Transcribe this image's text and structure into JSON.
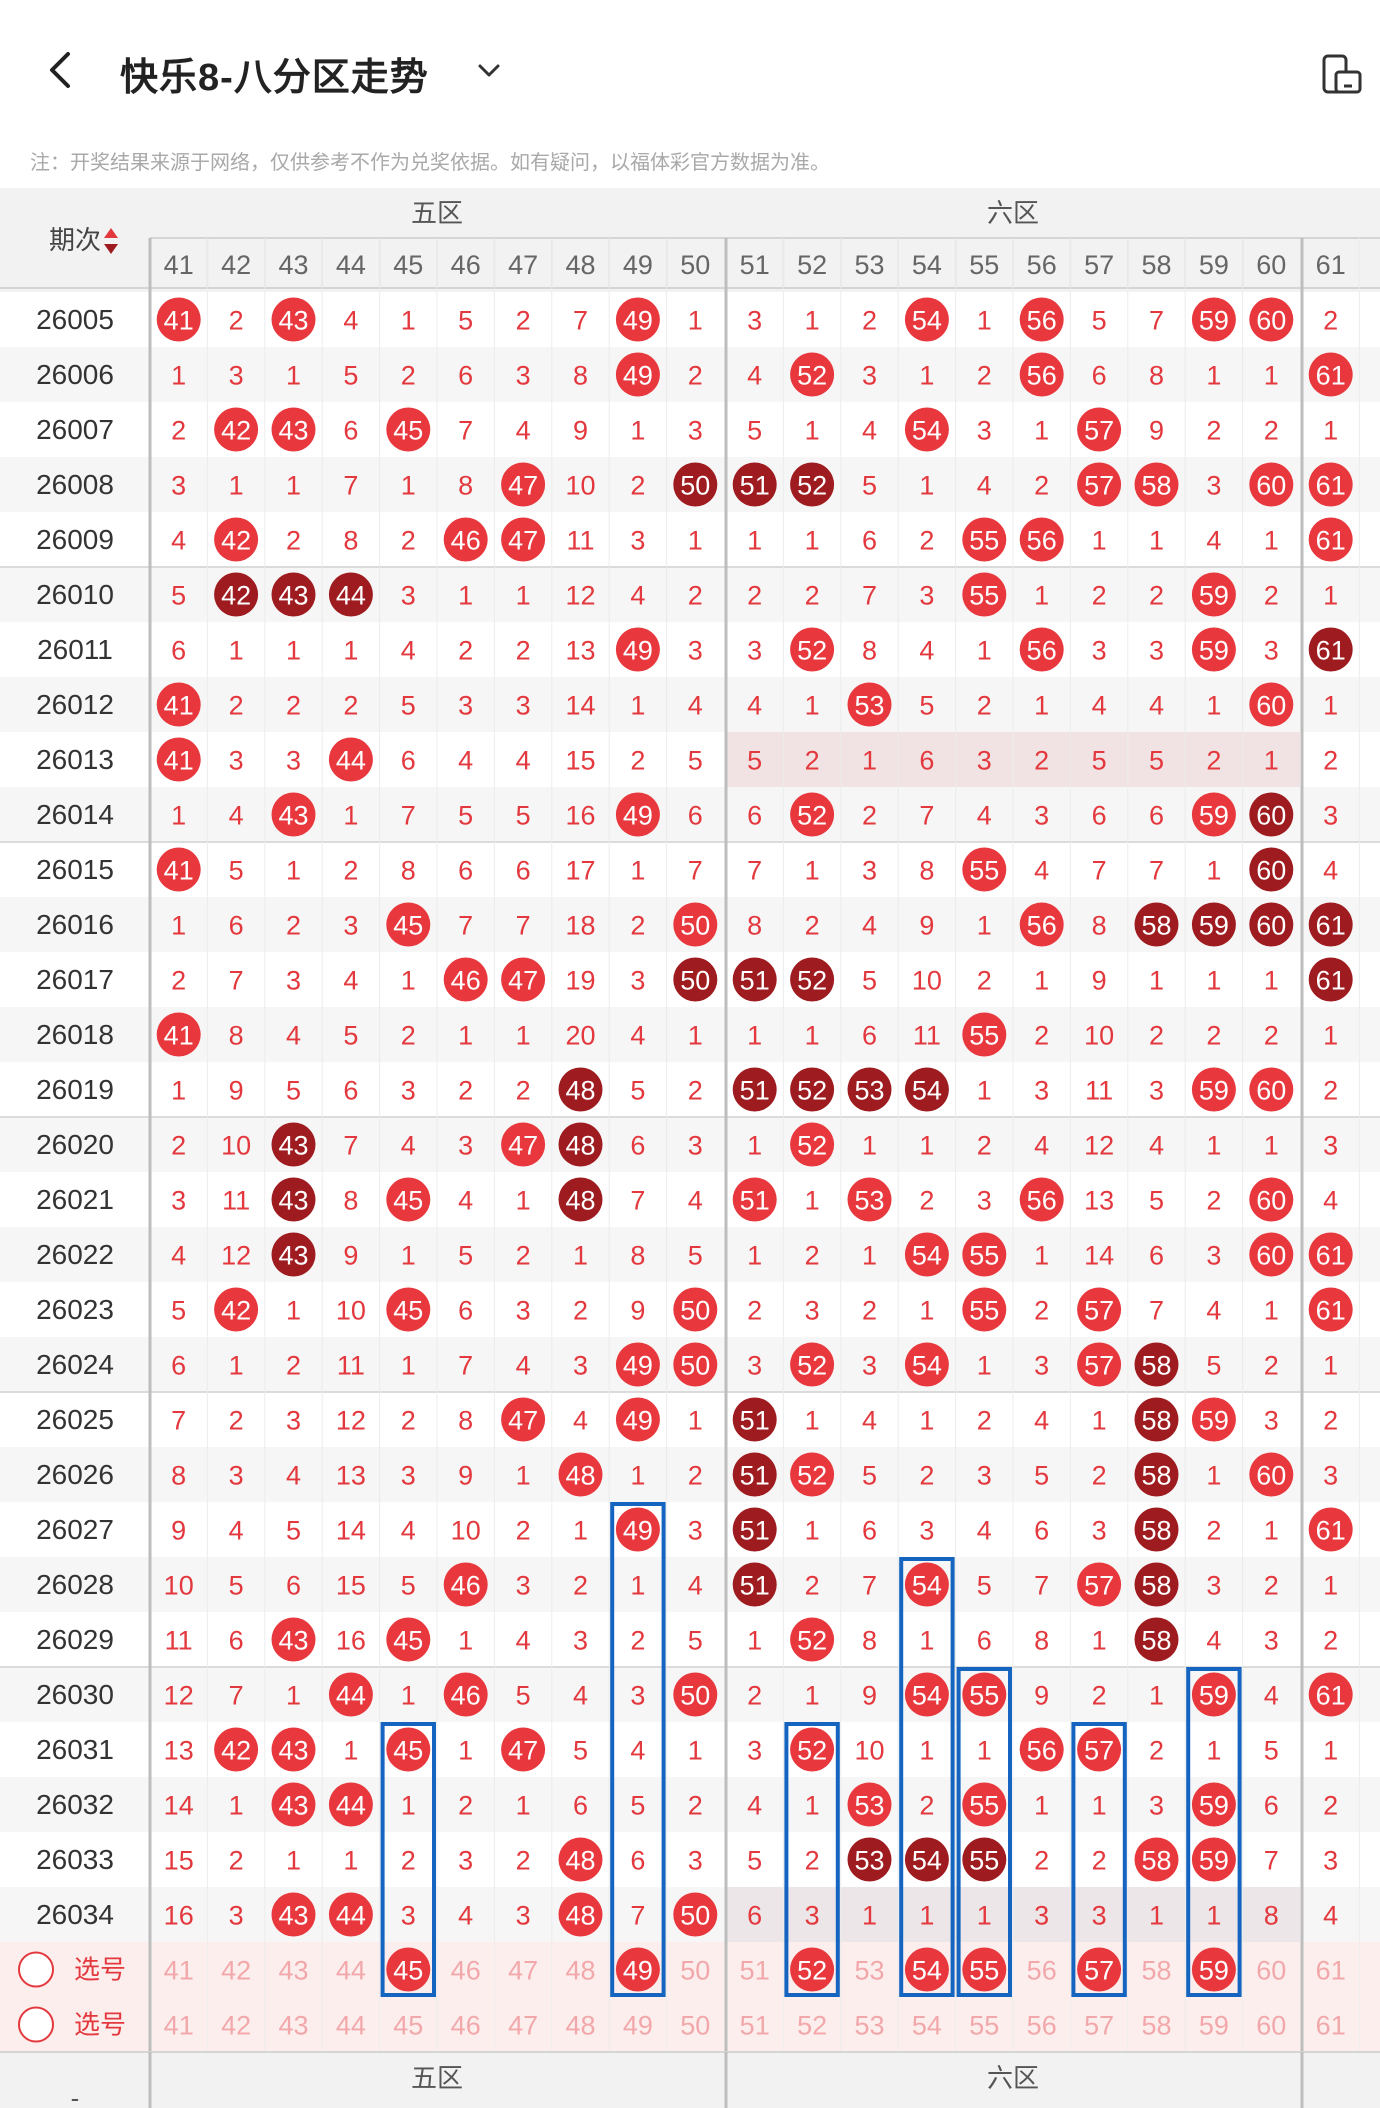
{
  "header": {
    "title": "快乐8-八分区走势",
    "notice": "注：开奖结果来源于网络，仅供参考不作为兑奖依据。如有疑问，以福体彩官方数据为准。"
  },
  "table": {
    "period_header": "期次",
    "zones": [
      {
        "label": "五区",
        "numbers": [
          "41",
          "42",
          "43",
          "44",
          "45",
          "46",
          "47",
          "48",
          "49",
          "50"
        ]
      },
      {
        "label": "六区",
        "numbers": [
          "51",
          "52",
          "53",
          "54",
          "55",
          "56",
          "57",
          "58",
          "59",
          "60"
        ]
      }
    ],
    "partial_column": "61",
    "select_label": "选号",
    "footer_dash": "-",
    "rows": [
      {
        "issue": "26005",
        "c": [
          41,
          2,
          43,
          4,
          1,
          5,
          2,
          7,
          49,
          1,
          3,
          1,
          2,
          54,
          1,
          56,
          5,
          7,
          59,
          60,
          2
        ]
      },
      {
        "issue": "26006",
        "c": [
          1,
          3,
          1,
          5,
          2,
          6,
          3,
          8,
          49,
          2,
          4,
          52,
          3,
          1,
          2,
          56,
          6,
          8,
          1,
          1,
          61
        ]
      },
      {
        "issue": "26007",
        "c": [
          2,
          42,
          43,
          6,
          45,
          7,
          4,
          9,
          1,
          3,
          5,
          1,
          4,
          54,
          3,
          1,
          57,
          9,
          2,
          2,
          1
        ]
      },
      {
        "issue": "26008",
        "c": [
          3,
          1,
          1,
          7,
          1,
          8,
          47,
          10,
          2,
          50,
          51,
          52,
          5,
          1,
          4,
          2,
          57,
          58,
          3,
          60,
          61
        ]
      },
      {
        "issue": "26009",
        "c": [
          4,
          42,
          2,
          8,
          2,
          46,
          47,
          11,
          3,
          1,
          1,
          1,
          6,
          2,
          55,
          56,
          1,
          1,
          4,
          1,
          61
        ]
      },
      {
        "issue": "26010",
        "c": [
          5,
          42,
          43,
          44,
          3,
          1,
          1,
          12,
          4,
          2,
          2,
          2,
          7,
          3,
          55,
          1,
          2,
          2,
          59,
          2,
          1
        ]
      },
      {
        "issue": "26011",
        "c": [
          6,
          1,
          1,
          1,
          4,
          2,
          2,
          13,
          49,
          3,
          3,
          52,
          8,
          4,
          1,
          56,
          3,
          3,
          59,
          3,
          61
        ]
      },
      {
        "issue": "26012",
        "c": [
          41,
          2,
          2,
          2,
          5,
          3,
          3,
          14,
          1,
          4,
          4,
          1,
          53,
          5,
          2,
          1,
          4,
          4,
          1,
          60,
          1
        ]
      },
      {
        "issue": "26013",
        "c": [
          41,
          3,
          3,
          44,
          6,
          4,
          4,
          15,
          2,
          5,
          5,
          2,
          1,
          6,
          3,
          2,
          5,
          5,
          2,
          1,
          2
        ]
      },
      {
        "issue": "26014",
        "c": [
          1,
          4,
          43,
          1,
          7,
          5,
          5,
          16,
          49,
          6,
          6,
          52,
          2,
          7,
          4,
          3,
          6,
          6,
          59,
          60,
          3
        ]
      },
      {
        "issue": "26015",
        "c": [
          41,
          5,
          1,
          2,
          8,
          6,
          6,
          17,
          1,
          7,
          7,
          1,
          3,
          8,
          55,
          4,
          7,
          7,
          1,
          60,
          4
        ]
      },
      {
        "issue": "26016",
        "c": [
          1,
          6,
          2,
          3,
          45,
          7,
          7,
          18,
          2,
          50,
          8,
          2,
          4,
          9,
          1,
          56,
          8,
          58,
          59,
          60,
          61
        ]
      },
      {
        "issue": "26017",
        "c": [
          2,
          7,
          3,
          4,
          1,
          46,
          47,
          19,
          3,
          50,
          51,
          52,
          5,
          10,
          2,
          1,
          9,
          1,
          1,
          1,
          61
        ]
      },
      {
        "issue": "26018",
        "c": [
          41,
          8,
          4,
          5,
          2,
          1,
          1,
          20,
          4,
          1,
          1,
          1,
          6,
          11,
          55,
          2,
          10,
          2,
          2,
          2,
          1
        ]
      },
      {
        "issue": "26019",
        "c": [
          1,
          9,
          5,
          6,
          3,
          2,
          2,
          48,
          5,
          2,
          51,
          52,
          53,
          54,
          1,
          3,
          11,
          3,
          59,
          60,
          2
        ]
      },
      {
        "issue": "26020",
        "c": [
          2,
          10,
          43,
          7,
          4,
          3,
          47,
          48,
          6,
          3,
          1,
          52,
          1,
          1,
          2,
          4,
          12,
          4,
          1,
          1,
          3
        ]
      },
      {
        "issue": "26021",
        "c": [
          3,
          11,
          43,
          8,
          45,
          4,
          1,
          48,
          7,
          4,
          51,
          1,
          53,
          2,
          3,
          56,
          13,
          5,
          2,
          60,
          4
        ]
      },
      {
        "issue": "26022",
        "c": [
          4,
          12,
          43,
          9,
          1,
          5,
          2,
          1,
          8,
          5,
          1,
          2,
          1,
          54,
          55,
          1,
          14,
          6,
          3,
          60,
          61
        ]
      },
      {
        "issue": "26023",
        "c": [
          5,
          42,
          1,
          10,
          45,
          6,
          3,
          2,
          9,
          50,
          2,
          3,
          2,
          1,
          55,
          2,
          57,
          7,
          4,
          1,
          61
        ]
      },
      {
        "issue": "26024",
        "c": [
          6,
          1,
          2,
          11,
          1,
          7,
          4,
          3,
          49,
          50,
          3,
          52,
          3,
          54,
          1,
          3,
          57,
          58,
          5,
          2,
          1
        ]
      },
      {
        "issue": "26025",
        "c": [
          7,
          2,
          3,
          12,
          2,
          8,
          47,
          4,
          49,
          1,
          51,
          1,
          4,
          1,
          2,
          4,
          1,
          58,
          59,
          3,
          2
        ]
      },
      {
        "issue": "26026",
        "c": [
          8,
          3,
          4,
          13,
          3,
          9,
          1,
          48,
          1,
          2,
          51,
          52,
          5,
          2,
          3,
          5,
          2,
          58,
          1,
          60,
          3
        ]
      },
      {
        "issue": "26027",
        "c": [
          9,
          4,
          5,
          14,
          4,
          10,
          2,
          1,
          49,
          3,
          51,
          1,
          6,
          3,
          4,
          6,
          3,
          58,
          2,
          1,
          61
        ]
      },
      {
        "issue": "26028",
        "c": [
          10,
          5,
          6,
          15,
          5,
          46,
          3,
          2,
          1,
          4,
          51,
          2,
          7,
          54,
          5,
          7,
          57,
          58,
          3,
          2,
          1
        ]
      },
      {
        "issue": "26029",
        "c": [
          11,
          6,
          43,
          16,
          45,
          1,
          4,
          3,
          2,
          5,
          1,
          52,
          8,
          1,
          6,
          8,
          1,
          58,
          4,
          3,
          2
        ]
      },
      {
        "issue": "26030",
        "c": [
          12,
          7,
          1,
          44,
          1,
          46,
          5,
          4,
          3,
          50,
          2,
          1,
          9,
          54,
          55,
          9,
          2,
          1,
          59,
          4,
          61
        ]
      },
      {
        "issue": "26031",
        "c": [
          13,
          42,
          43,
          1,
          45,
          1,
          47,
          5,
          4,
          1,
          3,
          52,
          10,
          1,
          1,
          56,
          57,
          2,
          1,
          5,
          1
        ]
      },
      {
        "issue": "26032",
        "c": [
          14,
          1,
          43,
          44,
          1,
          2,
          1,
          6,
          5,
          2,
          4,
          1,
          53,
          2,
          55,
          1,
          1,
          3,
          59,
          6,
          2
        ]
      },
      {
        "issue": "26033",
        "c": [
          15,
          2,
          1,
          1,
          2,
          3,
          2,
          48,
          6,
          3,
          5,
          2,
          53,
          54,
          55,
          2,
          2,
          58,
          59,
          7,
          3
        ]
      },
      {
        "issue": "26034",
        "c": [
          16,
          3,
          43,
          44,
          3,
          4,
          3,
          48,
          7,
          50,
          6,
          3,
          1,
          1,
          1,
          3,
          3,
          1,
          1,
          8,
          4
        ]
      }
    ],
    "dark_balls": [
      "26008:50",
      "26008:51",
      "26008:52",
      "26010:42",
      "26010:43",
      "26010:44",
      "26011:61",
      "26014:60",
      "26015:60",
      "26016:58",
      "26016:59",
      "26016:60",
      "26016:61",
      "26017:50",
      "26017:51",
      "26017:52",
      "26017:61",
      "26019:48",
      "26019:51",
      "26019:52",
      "26019:53",
      "26019:54",
      "26020:43",
      "26020:48",
      "26021:43",
      "26021:48",
      "26022:43",
      "26024:58",
      "26025:51",
      "26025:58",
      "26026:51",
      "26026:58",
      "26027:51",
      "26027:58",
      "26028:51",
      "26028:58",
      "26029:58",
      "26033:53",
      "26033:54",
      "26033:55"
    ],
    "select_row_1_picked": [
      45,
      49,
      52,
      54,
      55,
      57,
      59
    ],
    "boxes": [
      {
        "number": 45,
        "from": "26031"
      },
      {
        "number": 49,
        "from": "26027"
      },
      {
        "number": 52,
        "from": "26031"
      },
      {
        "number": 54,
        "from": "26028"
      },
      {
        "number": 55,
        "from": "26030"
      },
      {
        "number": 57,
        "from": "26031"
      },
      {
        "number": 59,
        "from": "26030"
      }
    ]
  },
  "colors": {
    "ball_red": "#e8383d",
    "ball_dark": "#9e1b1f",
    "text_red": "#e3383d",
    "box_blue": "#1565c0",
    "select_row_bg": "#fdeeee",
    "header_bg": "#f2f2f2"
  },
  "icons": [
    "chevron-left-icon",
    "chevron-down-icon",
    "device-icon",
    "sort-icon",
    "circle-radio-icon"
  ]
}
